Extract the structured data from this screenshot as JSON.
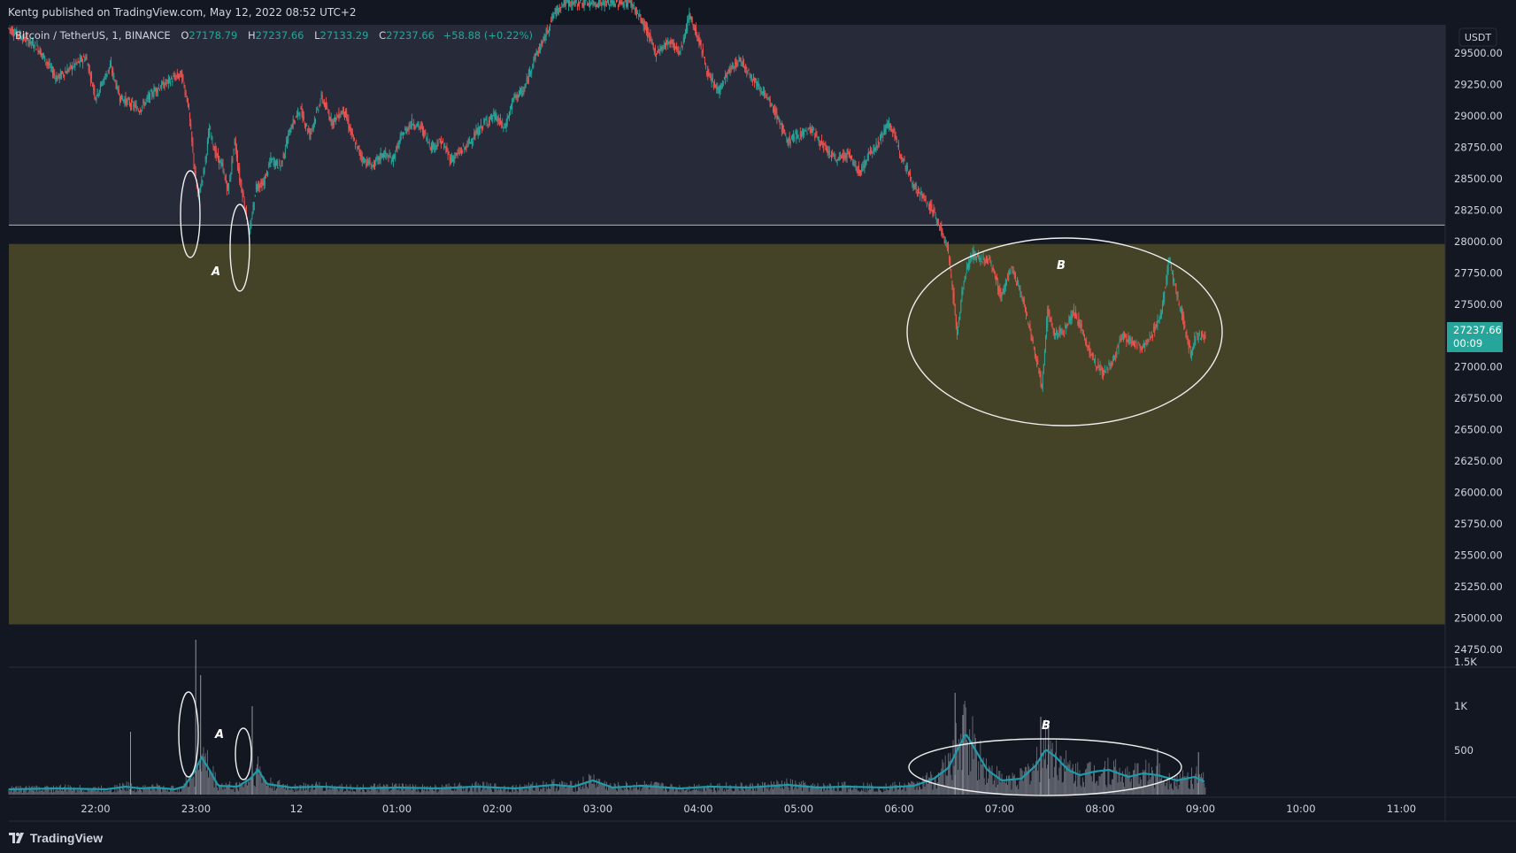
{
  "header": {
    "publish_text": "Kentg published on TradingView.com, May 12, 2022 08:52 UTC+2"
  },
  "legend": {
    "symbol": "Bitcoin / TetherUS, 1, BINANCE",
    "open_label": "O",
    "open": "27178.79",
    "high_label": "H",
    "high": "27237.66",
    "low_label": "L",
    "low": "27133.29",
    "close_label": "C",
    "close": "27237.66",
    "change": "+58.88 (+0.22%)"
  },
  "price_scale": {
    "currency": "USDT",
    "last_price": "27237.66",
    "countdown": "00:09"
  },
  "annotations": {
    "a_price": "A",
    "b_price": "B",
    "a_volume": "A",
    "b_volume": "B"
  },
  "footer": {
    "brand": "TradingView"
  },
  "colors": {
    "up": "#26a69a",
    "down": "#ef5350",
    "zone": "#454327",
    "upper_band": "#262a39",
    "volume_ma": "#1f9aa9",
    "background": "#131722"
  },
  "chart_data": {
    "type": "candlestick",
    "timeframe": "1",
    "price_ticks": [
      29500,
      29250,
      29000,
      28750,
      28500,
      28250,
      28000,
      27750,
      27500,
      27250,
      27000,
      26750,
      26500,
      26250,
      26000,
      25750,
      25500,
      25250,
      25000,
      24750
    ],
    "price_tick_labels": [
      "29500.00",
      "29250.00",
      "29000.00",
      "28750.00",
      "28500.00",
      "28250.00",
      "28000.00",
      "27750.00",
      "27500.00",
      "",
      "27000.00",
      "26750.00",
      "26500.00",
      "26250.00",
      "26000.00",
      "25750.00",
      "25500.00",
      "25250.00",
      "25000.00",
      "24750.00"
    ],
    "volume_ticks": [
      1500,
      1000,
      500
    ],
    "volume_tick_labels": [
      "1.5K",
      "1K",
      "500"
    ],
    "time_labels": [
      "22:00",
      "23:00",
      "12",
      "01:00",
      "02:00",
      "03:00",
      "04:00",
      "05:00",
      "06:00",
      "07:00",
      "08:00",
      "09:00",
      "10:00",
      "11:00"
    ],
    "horizontal_line": 28130,
    "zone": {
      "top": 27980,
      "bottom": 24950
    },
    "path": [
      [
        0,
        29700
      ],
      [
        30,
        29550
      ],
      [
        50,
        29300
      ],
      [
        80,
        29470
      ],
      [
        90,
        29150
      ],
      [
        105,
        29400
      ],
      [
        115,
        29150
      ],
      [
        135,
        29050
      ],
      [
        150,
        29200
      ],
      [
        170,
        29300
      ],
      [
        178,
        29330
      ],
      [
        185,
        29100
      ],
      [
        190,
        28700
      ],
      [
        195,
        28350
      ],
      [
        201,
        28550
      ],
      [
        207,
        28900
      ],
      [
        213,
        28700
      ],
      [
        220,
        28600
      ],
      [
        226,
        28400
      ],
      [
        233,
        28800
      ],
      [
        238,
        28500
      ],
      [
        243,
        28300
      ],
      [
        248,
        28050
      ],
      [
        255,
        28450
      ],
      [
        262,
        28450
      ],
      [
        270,
        28650
      ],
      [
        280,
        28600
      ],
      [
        290,
        28900
      ],
      [
        300,
        29050
      ],
      [
        310,
        28850
      ],
      [
        322,
        29150
      ],
      [
        333,
        28950
      ],
      [
        345,
        29050
      ],
      [
        355,
        28800
      ],
      [
        365,
        28650
      ],
      [
        375,
        28600
      ],
      [
        385,
        28700
      ],
      [
        395,
        28650
      ],
      [
        405,
        28850
      ],
      [
        415,
        28950
      ],
      [
        425,
        28900
      ],
      [
        435,
        28750
      ],
      [
        445,
        28800
      ],
      [
        455,
        28650
      ],
      [
        470,
        28750
      ],
      [
        480,
        28850
      ],
      [
        490,
        28950
      ],
      [
        500,
        29000
      ],
      [
        510,
        28900
      ],
      [
        520,
        29150
      ],
      [
        530,
        29200
      ],
      [
        540,
        29450
      ],
      [
        550,
        29600
      ],
      [
        560,
        29800
      ],
      [
        570,
        29900
      ],
      [
        640,
        29900
      ],
      [
        655,
        29700
      ],
      [
        665,
        29500
      ],
      [
        680,
        29600
      ],
      [
        690,
        29500
      ],
      [
        700,
        29800
      ],
      [
        710,
        29600
      ],
      [
        720,
        29300
      ],
      [
        730,
        29200
      ],
      [
        740,
        29350
      ],
      [
        752,
        29450
      ],
      [
        765,
        29300
      ],
      [
        775,
        29200
      ],
      [
        790,
        29000
      ],
      [
        800,
        28800
      ],
      [
        812,
        28850
      ],
      [
        825,
        28900
      ],
      [
        838,
        28750
      ],
      [
        850,
        28650
      ],
      [
        862,
        28700
      ],
      [
        875,
        28550
      ],
      [
        885,
        28700
      ],
      [
        895,
        28800
      ],
      [
        905,
        28950
      ],
      [
        912,
        28800
      ],
      [
        920,
        28650
      ],
      [
        930,
        28450
      ],
      [
        940,
        28350
      ],
      [
        950,
        28250
      ],
      [
        958,
        28100
      ],
      [
        965,
        27950
      ],
      [
        970,
        27650
      ],
      [
        975,
        27250
      ],
      [
        980,
        27600
      ],
      [
        985,
        27800
      ],
      [
        992,
        27900
      ],
      [
        1000,
        27850
      ],
      [
        1008,
        27850
      ],
      [
        1015,
        27700
      ],
      [
        1020,
        27550
      ],
      [
        1030,
        27800
      ],
      [
        1040,
        27600
      ],
      [
        1048,
        27350
      ],
      [
        1055,
        27100
      ],
      [
        1062,
        26850
      ],
      [
        1068,
        27450
      ],
      [
        1075,
        27250
      ],
      [
        1085,
        27300
      ],
      [
        1095,
        27450
      ],
      [
        1105,
        27250
      ],
      [
        1115,
        27050
      ],
      [
        1125,
        26950
      ],
      [
        1135,
        27050
      ],
      [
        1145,
        27250
      ],
      [
        1155,
        27200
      ],
      [
        1165,
        27150
      ],
      [
        1175,
        27250
      ],
      [
        1185,
        27450
      ],
      [
        1193,
        27850
      ],
      [
        1200,
        27600
      ],
      [
        1208,
        27350
      ],
      [
        1215,
        27100
      ],
      [
        1220,
        27250
      ],
      [
        1229,
        27237
      ]
    ],
    "volume_path": [
      [
        0,
        60
      ],
      [
        50,
        70
      ],
      [
        100,
        60
      ],
      [
        120,
        90
      ],
      [
        135,
        70
      ],
      [
        150,
        80
      ],
      [
        170,
        60
      ],
      [
        180,
        90
      ],
      [
        190,
        250
      ],
      [
        198,
        420
      ],
      [
        205,
        300
      ],
      [
        215,
        100
      ],
      [
        235,
        90
      ],
      [
        248,
        180
      ],
      [
        256,
        280
      ],
      [
        265,
        120
      ],
      [
        290,
        80
      ],
      [
        320,
        90
      ],
      [
        360,
        70
      ],
      [
        400,
        80
      ],
      [
        440,
        70
      ],
      [
        480,
        90
      ],
      [
        520,
        70
      ],
      [
        560,
        110
      ],
      [
        580,
        90
      ],
      [
        600,
        160
      ],
      [
        620,
        80
      ],
      [
        650,
        100
      ],
      [
        690,
        70
      ],
      [
        720,
        90
      ],
      [
        760,
        80
      ],
      [
        800,
        110
      ],
      [
        830,
        80
      ],
      [
        860,
        90
      ],
      [
        900,
        80
      ],
      [
        930,
        100
      ],
      [
        950,
        180
      ],
      [
        965,
        300
      ],
      [
        975,
        520
      ],
      [
        983,
        690
      ],
      [
        992,
        520
      ],
      [
        1005,
        280
      ],
      [
        1020,
        160
      ],
      [
        1040,
        180
      ],
      [
        1055,
        330
      ],
      [
        1065,
        510
      ],
      [
        1075,
        430
      ],
      [
        1088,
        280
      ],
      [
        1100,
        220
      ],
      [
        1115,
        260
      ],
      [
        1130,
        280
      ],
      [
        1150,
        200
      ],
      [
        1165,
        240
      ],
      [
        1180,
        220
      ],
      [
        1200,
        160
      ],
      [
        1218,
        200
      ],
      [
        1229,
        140
      ]
    ],
    "volume_spikes": [
      [
        125,
        710
      ],
      [
        192,
        1750
      ],
      [
        197,
        1350
      ],
      [
        250,
        1000
      ],
      [
        972,
        1150
      ],
      [
        980,
        900
      ],
      [
        1060,
        880
      ],
      [
        1068,
        820
      ],
      [
        1180,
        520
      ],
      [
        1222,
        480
      ]
    ]
  }
}
